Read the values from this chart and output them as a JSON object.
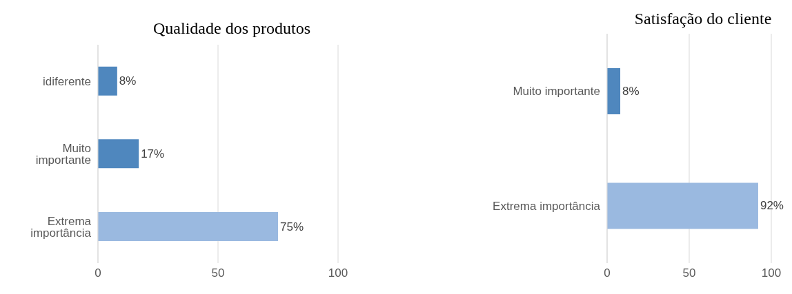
{
  "chart_data": [
    {
      "type": "bar",
      "orientation": "horizontal",
      "title": "Qualidade dos produtos",
      "categories": [
        "idiferente",
        "Muito importante",
        "Extrema importância"
      ],
      "values": [
        8,
        17,
        75
      ],
      "colors": [
        "#4f87be",
        "#4f87be",
        "#9ab9e0"
      ],
      "value_labels": [
        "8%",
        "17%",
        "75%"
      ],
      "xlim": [
        0,
        100
      ],
      "xticks": [
        0,
        50,
        100
      ],
      "grid": "x"
    },
    {
      "type": "bar",
      "orientation": "horizontal",
      "title": "Satisfação do cliente",
      "categories": [
        "Muito importante",
        "Extrema importância"
      ],
      "values": [
        8,
        92
      ],
      "colors": [
        "#4f87be",
        "#9ab9e0"
      ],
      "value_labels": [
        "8%",
        "92%"
      ],
      "xlim": [
        0,
        100
      ],
      "xticks": [
        0,
        50,
        100
      ],
      "grid": "x"
    }
  ]
}
